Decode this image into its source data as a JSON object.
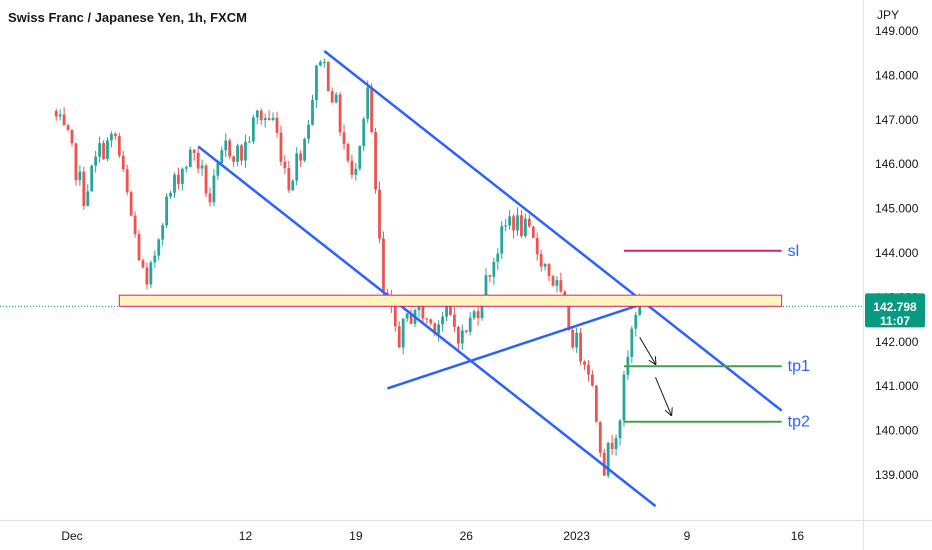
{
  "header": {
    "title": "Swiss Franc / Japanese Yen, 1h, FXCM",
    "currency": "JPY"
  },
  "price_badge": {
    "price": "142.798",
    "countdown": "11:07"
  },
  "colors": {
    "up": "#26a69a",
    "down": "#ef5350",
    "trendline": "#2962ff",
    "sl": "#e91e63",
    "tp": "#43a047",
    "zone_fill": "#fff3bf",
    "zone_border": "#e91e63",
    "badge": "#089981",
    "label": "#2962ff"
  },
  "chart_data": {
    "type": "line",
    "title": "Swiss Franc / Japanese Yen, 1h, FXCM",
    "y_axis": {
      "unit": "JPY",
      "range": [
        138.4,
        149.2
      ],
      "ticks": [
        "149.000",
        "148.000",
        "147.000",
        "146.000",
        "145.000",
        "144.000",
        "143.000",
        "142.000",
        "141.000",
        "140.000",
        "139.000"
      ],
      "ticks_values": [
        149,
        148,
        147,
        146,
        145,
        144,
        143,
        142,
        141,
        140,
        139
      ]
    },
    "x_axis": {
      "range": [
        "2022-11-30",
        "2023-01-19"
      ],
      "ticks": [
        {
          "label": "Dec",
          "date": "2022-12-01"
        },
        {
          "label": "12",
          "date": "2022-12-12"
        },
        {
          "label": "19",
          "date": "2022-12-19"
        },
        {
          "label": "26",
          "date": "2022-12-26"
        },
        {
          "label": "2023",
          "date": "2023-01-02"
        },
        {
          "label": "9",
          "date": "2023-01-09"
        },
        {
          "label": "16",
          "date": "2023-01-16"
        }
      ]
    },
    "series": [
      {
        "points": [
          [
            "2022-11-30",
            147.2
          ],
          [
            "2022-12-01",
            146.5
          ],
          [
            "2022-12-02",
            145.3
          ],
          [
            "2022-12-03",
            146.3
          ],
          [
            "2022-12-04",
            146.6
          ],
          [
            "2022-12-05",
            144.8
          ],
          [
            "2022-12-06",
            143.1
          ],
          [
            "2022-12-07",
            144.9
          ],
          [
            "2022-12-08",
            145.8
          ],
          [
            "2022-12-09",
            146.3
          ],
          [
            "2022-12-10",
            145.2
          ],
          [
            "2022-12-11",
            146.4
          ],
          [
            "2022-12-12",
            146.2
          ],
          [
            "2022-12-13",
            147.1
          ],
          [
            "2022-12-14",
            147.0
          ],
          [
            "2022-12-15",
            145.6
          ],
          [
            "2022-12-16",
            146.6
          ],
          [
            "2022-12-17",
            148.5
          ],
          [
            "2022-12-18",
            147.3
          ],
          [
            "2022-12-19",
            145.6
          ],
          [
            "2022-12-20",
            147.7
          ],
          [
            "2022-12-21",
            143.0
          ],
          [
            "2022-12-22",
            142.1
          ],
          [
            "2022-12-23",
            142.8
          ],
          [
            "2022-12-24",
            142.4
          ],
          [
            "2022-12-25",
            142.6
          ],
          [
            "2022-12-26",
            142.1
          ],
          [
            "2022-12-27",
            142.8
          ],
          [
            "2022-12-28",
            143.9
          ],
          [
            "2022-12-29",
            144.8
          ],
          [
            "2022-12-30",
            144.5
          ],
          [
            "2022-12-31",
            143.9
          ],
          [
            "2023-01-01",
            143.2
          ],
          [
            "2023-01-02",
            142.1
          ],
          [
            "2023-01-03",
            141.5
          ],
          [
            "2023-01-04",
            139.2
          ],
          [
            "2023-01-05",
            140.4
          ],
          [
            "2023-01-06",
            142.8
          ]
        ]
      }
    ],
    "annotations": [
      {
        "type": "trendline",
        "from": [
          "2022-12-17",
          148.55
        ],
        "to": [
          "2023-01-15",
          140.45
        ]
      },
      {
        "type": "trendline",
        "from": [
          "2022-12-09",
          146.4
        ],
        "to": [
          "2023-01-07",
          138.3
        ]
      },
      {
        "type": "trendline",
        "from": [
          "2022-12-21",
          140.95
        ],
        "to": [
          "2023-01-07",
          142.95
        ]
      },
      {
        "type": "zone",
        "from": "2022-12-04",
        "to": "2023-01-15",
        "y_low": 142.8,
        "y_high": 143.05
      },
      {
        "type": "level",
        "label": "sl",
        "value": 144.05,
        "from": "2023-01-05",
        "to": "2023-01-15"
      },
      {
        "type": "level",
        "label": "tp1",
        "value": 141.45,
        "from": "2023-01-05",
        "to": "2023-01-15"
      },
      {
        "type": "level",
        "label": "tp2",
        "value": 140.2,
        "from": "2023-01-05",
        "to": "2023-01-15"
      },
      {
        "type": "arrow",
        "from": [
          "2023-01-06",
          142.1
        ],
        "to": [
          "2023-01-07",
          141.5
        ]
      },
      {
        "type": "arrow",
        "from": [
          "2023-01-07",
          141.2
        ],
        "to": [
          "2023-01-08",
          140.35
        ]
      }
    ],
    "current_price": 142.798,
    "grid": false,
    "legend": "none"
  }
}
